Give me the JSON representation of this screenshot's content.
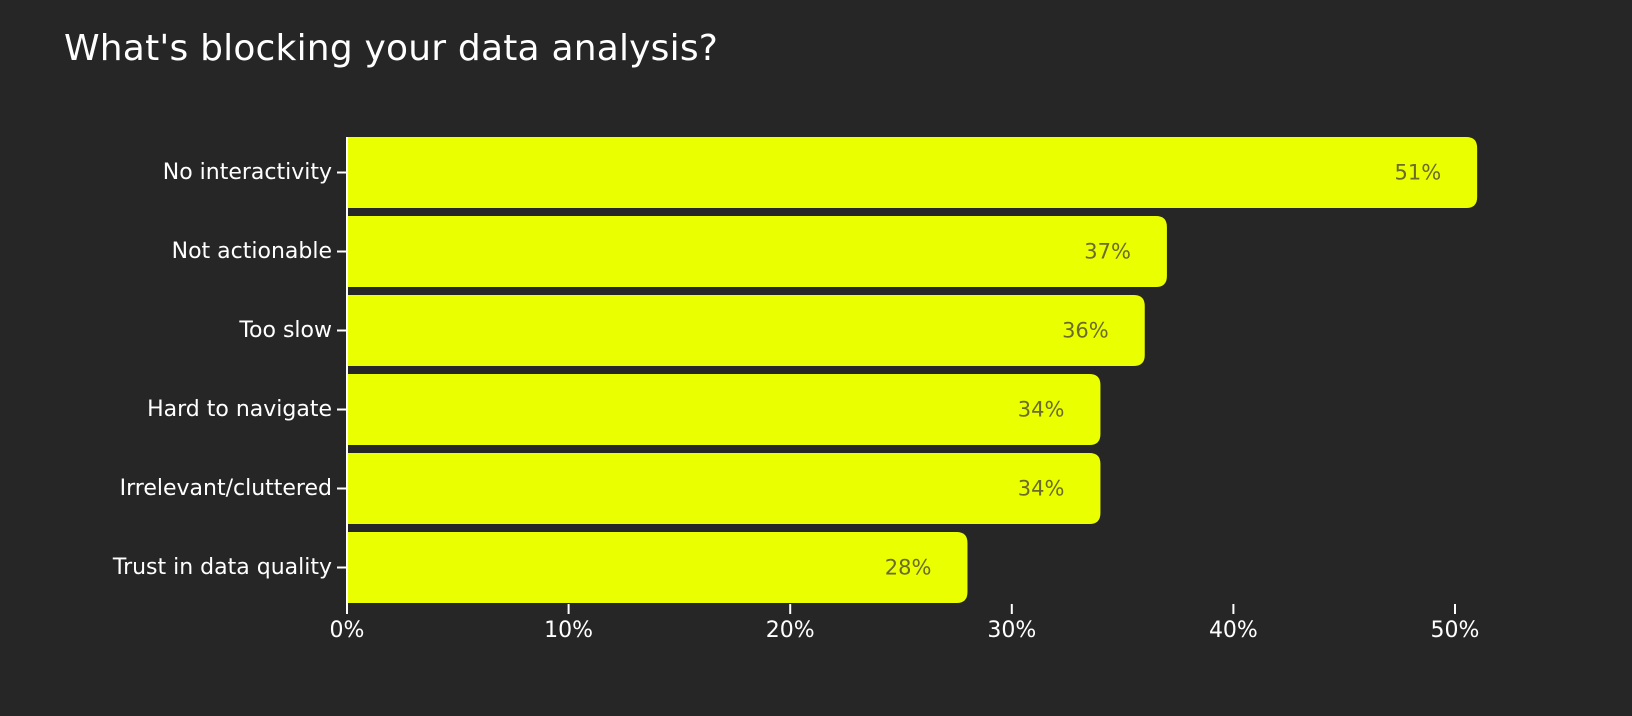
{
  "chart_data": {
    "type": "bar",
    "orientation": "horizontal",
    "title": "What's blocking your data analysis?",
    "xlabel": "",
    "ylabel": "",
    "categories": [
      "No interactivity",
      "Not actionable",
      "Too slow",
      "Hard to navigate",
      "Irrelevant/cluttered",
      "Trust in data quality"
    ],
    "values": [
      51,
      37,
      36,
      34,
      34,
      28
    ],
    "value_labels": [
      "51%",
      "37%",
      "36%",
      "34%",
      "34%",
      "28%"
    ],
    "xlim": [
      0,
      55
    ],
    "xticks": [
      0,
      10,
      20,
      30,
      40,
      50
    ],
    "xtick_labels": [
      "0%",
      "10%",
      "20%",
      "30%",
      "40%",
      "50%"
    ],
    "grid": false,
    "legend": "none",
    "colors": {
      "background": "#262626",
      "bar": "#EAFF00",
      "value_text": "#6B6B2A",
      "text": "#FFFFFF"
    }
  }
}
